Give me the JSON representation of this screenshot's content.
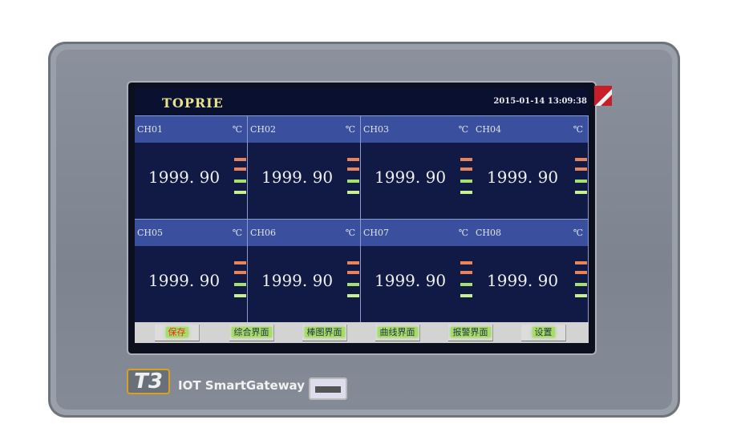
{
  "header": {
    "brand": "TOPRIE",
    "datetime": "2015-01-14 13:09:38"
  },
  "channels": [
    {
      "name": "CH01",
      "unit": "℃",
      "value": "1999. 90"
    },
    {
      "name": "CH02",
      "unit": "℃",
      "value": "1999. 90"
    },
    {
      "name": "CH03",
      "unit": "℃",
      "value": "1999. 90"
    },
    {
      "name": "CH04",
      "unit": "℃",
      "value": "1999. 90"
    },
    {
      "name": "CH05",
      "unit": "℃",
      "value": "1999. 90"
    },
    {
      "name": "CH06",
      "unit": "℃",
      "value": "1999. 90"
    },
    {
      "name": "CH07",
      "unit": "℃",
      "value": "1999. 90"
    },
    {
      "name": "CH08",
      "unit": "℃",
      "value": "1999. 90"
    }
  ],
  "alarm_colors": [
    "#e8845a",
    "#e8845a",
    "#a8e070",
    "#c8f090"
  ],
  "buttons": [
    {
      "label": "保存",
      "color": "#e03020"
    },
    {
      "label": "综合界面",
      "color": "#223344"
    },
    {
      "label": "棒图界面",
      "color": "#223344"
    },
    {
      "label": "曲线界面",
      "color": "#223344"
    },
    {
      "label": "报警界面",
      "color": "#223344"
    },
    {
      "label": "设置",
      "color": "#223344"
    }
  ],
  "device": {
    "model": "T3",
    "name": "IOT SmartGateway"
  }
}
